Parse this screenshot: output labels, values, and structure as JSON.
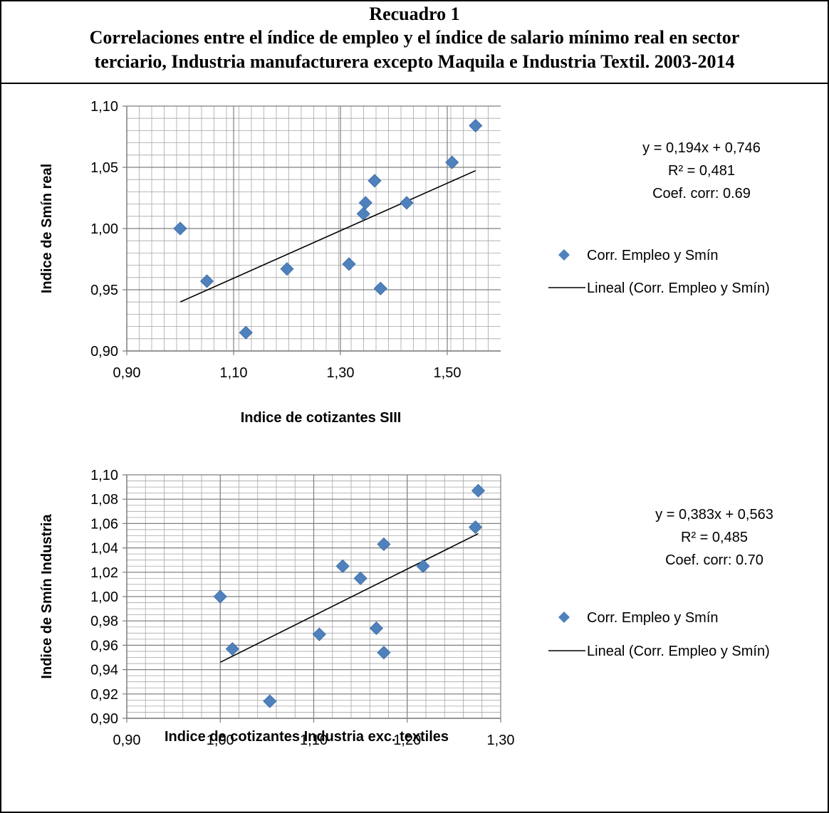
{
  "header": {
    "title": "Recuadro 1",
    "subtitle_line1": "Correlaciones entre el índice de empleo y el índice de salario mínimo real en sector",
    "subtitle_line2": "terciario, Industria manufacturera excepto Maquila e Industria Textil. 2003-2014"
  },
  "colors": {
    "marker": "#4F81BD",
    "trendline": "#000000",
    "grid": "#7f7f7f"
  },
  "chart_data": [
    {
      "type": "scatter",
      "xlabel": "Indice de cotizantes SIII",
      "ylabel": "Indice de Smín real",
      "xlim": [
        0.9,
        1.6
      ],
      "ylim": [
        0.9,
        1.1
      ],
      "xticks": [
        "0,90",
        "1,10",
        "1,30",
        "1,50"
      ],
      "yticks": [
        "0,90",
        "0,95",
        "1,00",
        "1,05",
        "1,10"
      ],
      "grid": true,
      "series": [
        {
          "name": "Corr. Empleo y Smín",
          "points": [
            [
              1.0,
              1.0
            ],
            [
              1.05,
              0.957
            ],
            [
              1.123,
              0.915
            ],
            [
              1.2,
              0.967
            ],
            [
              1.316,
              0.971
            ],
            [
              1.343,
              1.012
            ],
            [
              1.347,
              1.021
            ],
            [
              1.364,
              1.039
            ],
            [
              1.375,
              0.951
            ],
            [
              1.424,
              1.021
            ],
            [
              1.509,
              1.054
            ],
            [
              1.553,
              1.084
            ]
          ]
        }
      ],
      "trendline": {
        "name": "Lineal (Corr. Empleo y Smín)",
        "slope": 0.194,
        "intercept": 0.746,
        "x_range": [
          1.0,
          1.553
        ]
      },
      "annotation": [
        "y = 0,194x + 0,746",
        "R² = 0,481",
        "Coef. corr: 0.69"
      ],
      "legend": [
        "Corr. Empleo y Smín",
        "Lineal (Corr. Empleo y Smín)"
      ],
      "legend_position": "right"
    },
    {
      "type": "scatter",
      "xlabel": "Indice de cotizantes Industria exc. textiles",
      "ylabel": "Indice de Smín Industria",
      "xlim": [
        0.9,
        1.3
      ],
      "ylim": [
        0.9,
        1.1
      ],
      "xticks": [
        "0,90",
        "1,00",
        "1,10",
        "1,20",
        "1,30"
      ],
      "yticks": [
        "0,90",
        "0,92",
        "0,94",
        "0,96",
        "0,98",
        "1,00",
        "1,02",
        "1,04",
        "1,06",
        "1,08",
        "1,10"
      ],
      "grid": true,
      "series": [
        {
          "name": "Corr. Empleo y Smín",
          "points": [
            [
              1.0,
              1.0
            ],
            [
              1.013,
              0.957
            ],
            [
              1.053,
              0.914
            ],
            [
              1.106,
              0.969
            ],
            [
              1.131,
              1.025
            ],
            [
              1.15,
              1.015
            ],
            [
              1.167,
              0.974
            ],
            [
              1.175,
              1.043
            ],
            [
              1.175,
              0.954
            ],
            [
              1.217,
              1.025
            ],
            [
              1.273,
              1.057
            ],
            [
              1.276,
              1.087
            ]
          ]
        }
      ],
      "trendline": {
        "name": "Lineal (Corr. Empleo y Smín)",
        "slope": 0.383,
        "intercept": 0.563,
        "x_range": [
          1.0,
          1.276
        ]
      },
      "annotation": [
        "y = 0,383x + 0,563",
        "R² = 0,485",
        "Coef. corr: 0.70"
      ],
      "legend": [
        "Corr. Empleo y Smín",
        "Lineal (Corr. Empleo y Smín)"
      ],
      "legend_position": "right"
    }
  ]
}
